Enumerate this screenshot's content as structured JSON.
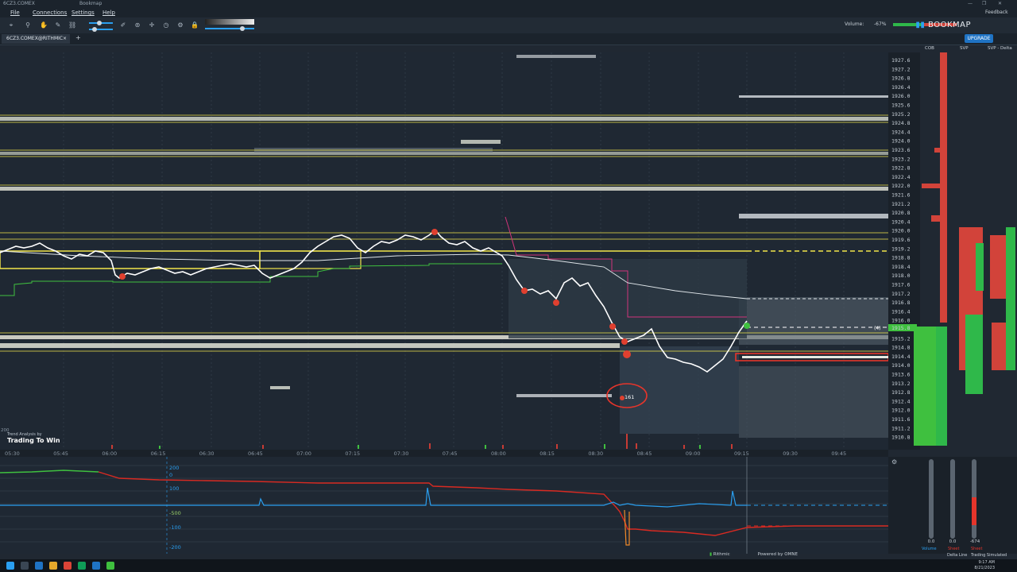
{
  "window": {
    "title": "6CZ3.COMEX",
    "title_extra": "Bookmap",
    "controls": [
      "—",
      "❐",
      "✕"
    ]
  },
  "menu": {
    "file": "File",
    "connections": "Connections",
    "settings": "Settings",
    "help": "Help",
    "feedback": "Feedback"
  },
  "tab": {
    "label": "6CZ3.COMEX@RITHMIC",
    "close": "×",
    "add": "+"
  },
  "header": {
    "volume_label": "Volume:",
    "volume_pct": "-67%",
    "brand": "BOOKMAP",
    "upgrade": "UPGRADE"
  },
  "right_headers": {
    "cob": "COB",
    "svp": "SVP",
    "svp_delta": "SVP - Delta"
  },
  "price_axis": [
    "1927.6",
    "1927.2",
    "1926.8",
    "1926.4",
    "1926.0",
    "1925.6",
    "1925.2",
    "1924.8",
    "1924.4",
    "1924.0",
    "1923.6",
    "1923.2",
    "1922.8",
    "1922.4",
    "1922.0",
    "1921.6",
    "1921.2",
    "1920.8",
    "1920.4",
    "1920.0",
    "1919.6",
    "1919.2",
    "1918.8",
    "1918.4",
    "1918.0",
    "1917.6",
    "1917.2",
    "1916.8",
    "1916.4",
    "1916.0",
    "1915.6",
    "1915.2",
    "1914.8",
    "1914.4",
    "1914.0",
    "1913.6",
    "1913.2",
    "1912.8",
    "1912.4",
    "1912.0",
    "1911.6",
    "1911.2",
    "1910.8"
  ],
  "current_price": "1915.8",
  "time_axis": [
    "05:30",
    "05:45",
    "06:00",
    "06:15",
    "06:30",
    "06:45",
    "07:00",
    "07:15",
    "07:30",
    "07:45",
    "08:00",
    "08:15",
    "08:30",
    "08:45",
    "09:00",
    "09:15",
    "09:30",
    "09:45"
  ],
  "indicator_labels": [
    "200",
    "0",
    "100",
    "-500",
    "-100",
    "-200"
  ],
  "annotations": {
    "big_trade": "161",
    "pos": "(4)",
    "left_axis": "200"
  },
  "watermark": {
    "line1": "Trend Analysis by",
    "line2": "Trading To Win"
  },
  "right_panel": {
    "values": [
      "0.0",
      "0.0",
      "-674"
    ],
    "labels": [
      "Volume",
      "Delta Line",
      "Trading Simulated"
    ],
    "sub": [
      "Sheet",
      "Sheet"
    ]
  },
  "footer": {
    "rithmic": "Rithmic",
    "infra": "Powered by OMNE"
  },
  "clock": {
    "time": "9:17 AM",
    "date": "8/21/2023"
  },
  "colors": {
    "bg": "#202832",
    "price_line": "#ffffff",
    "vwap": "#e0e6ea",
    "yellow": "#f2e64b",
    "green": "#3fc03f",
    "red": "#e5352b",
    "blue": "#2a9ff0",
    "magenta": "#d0347a"
  }
}
